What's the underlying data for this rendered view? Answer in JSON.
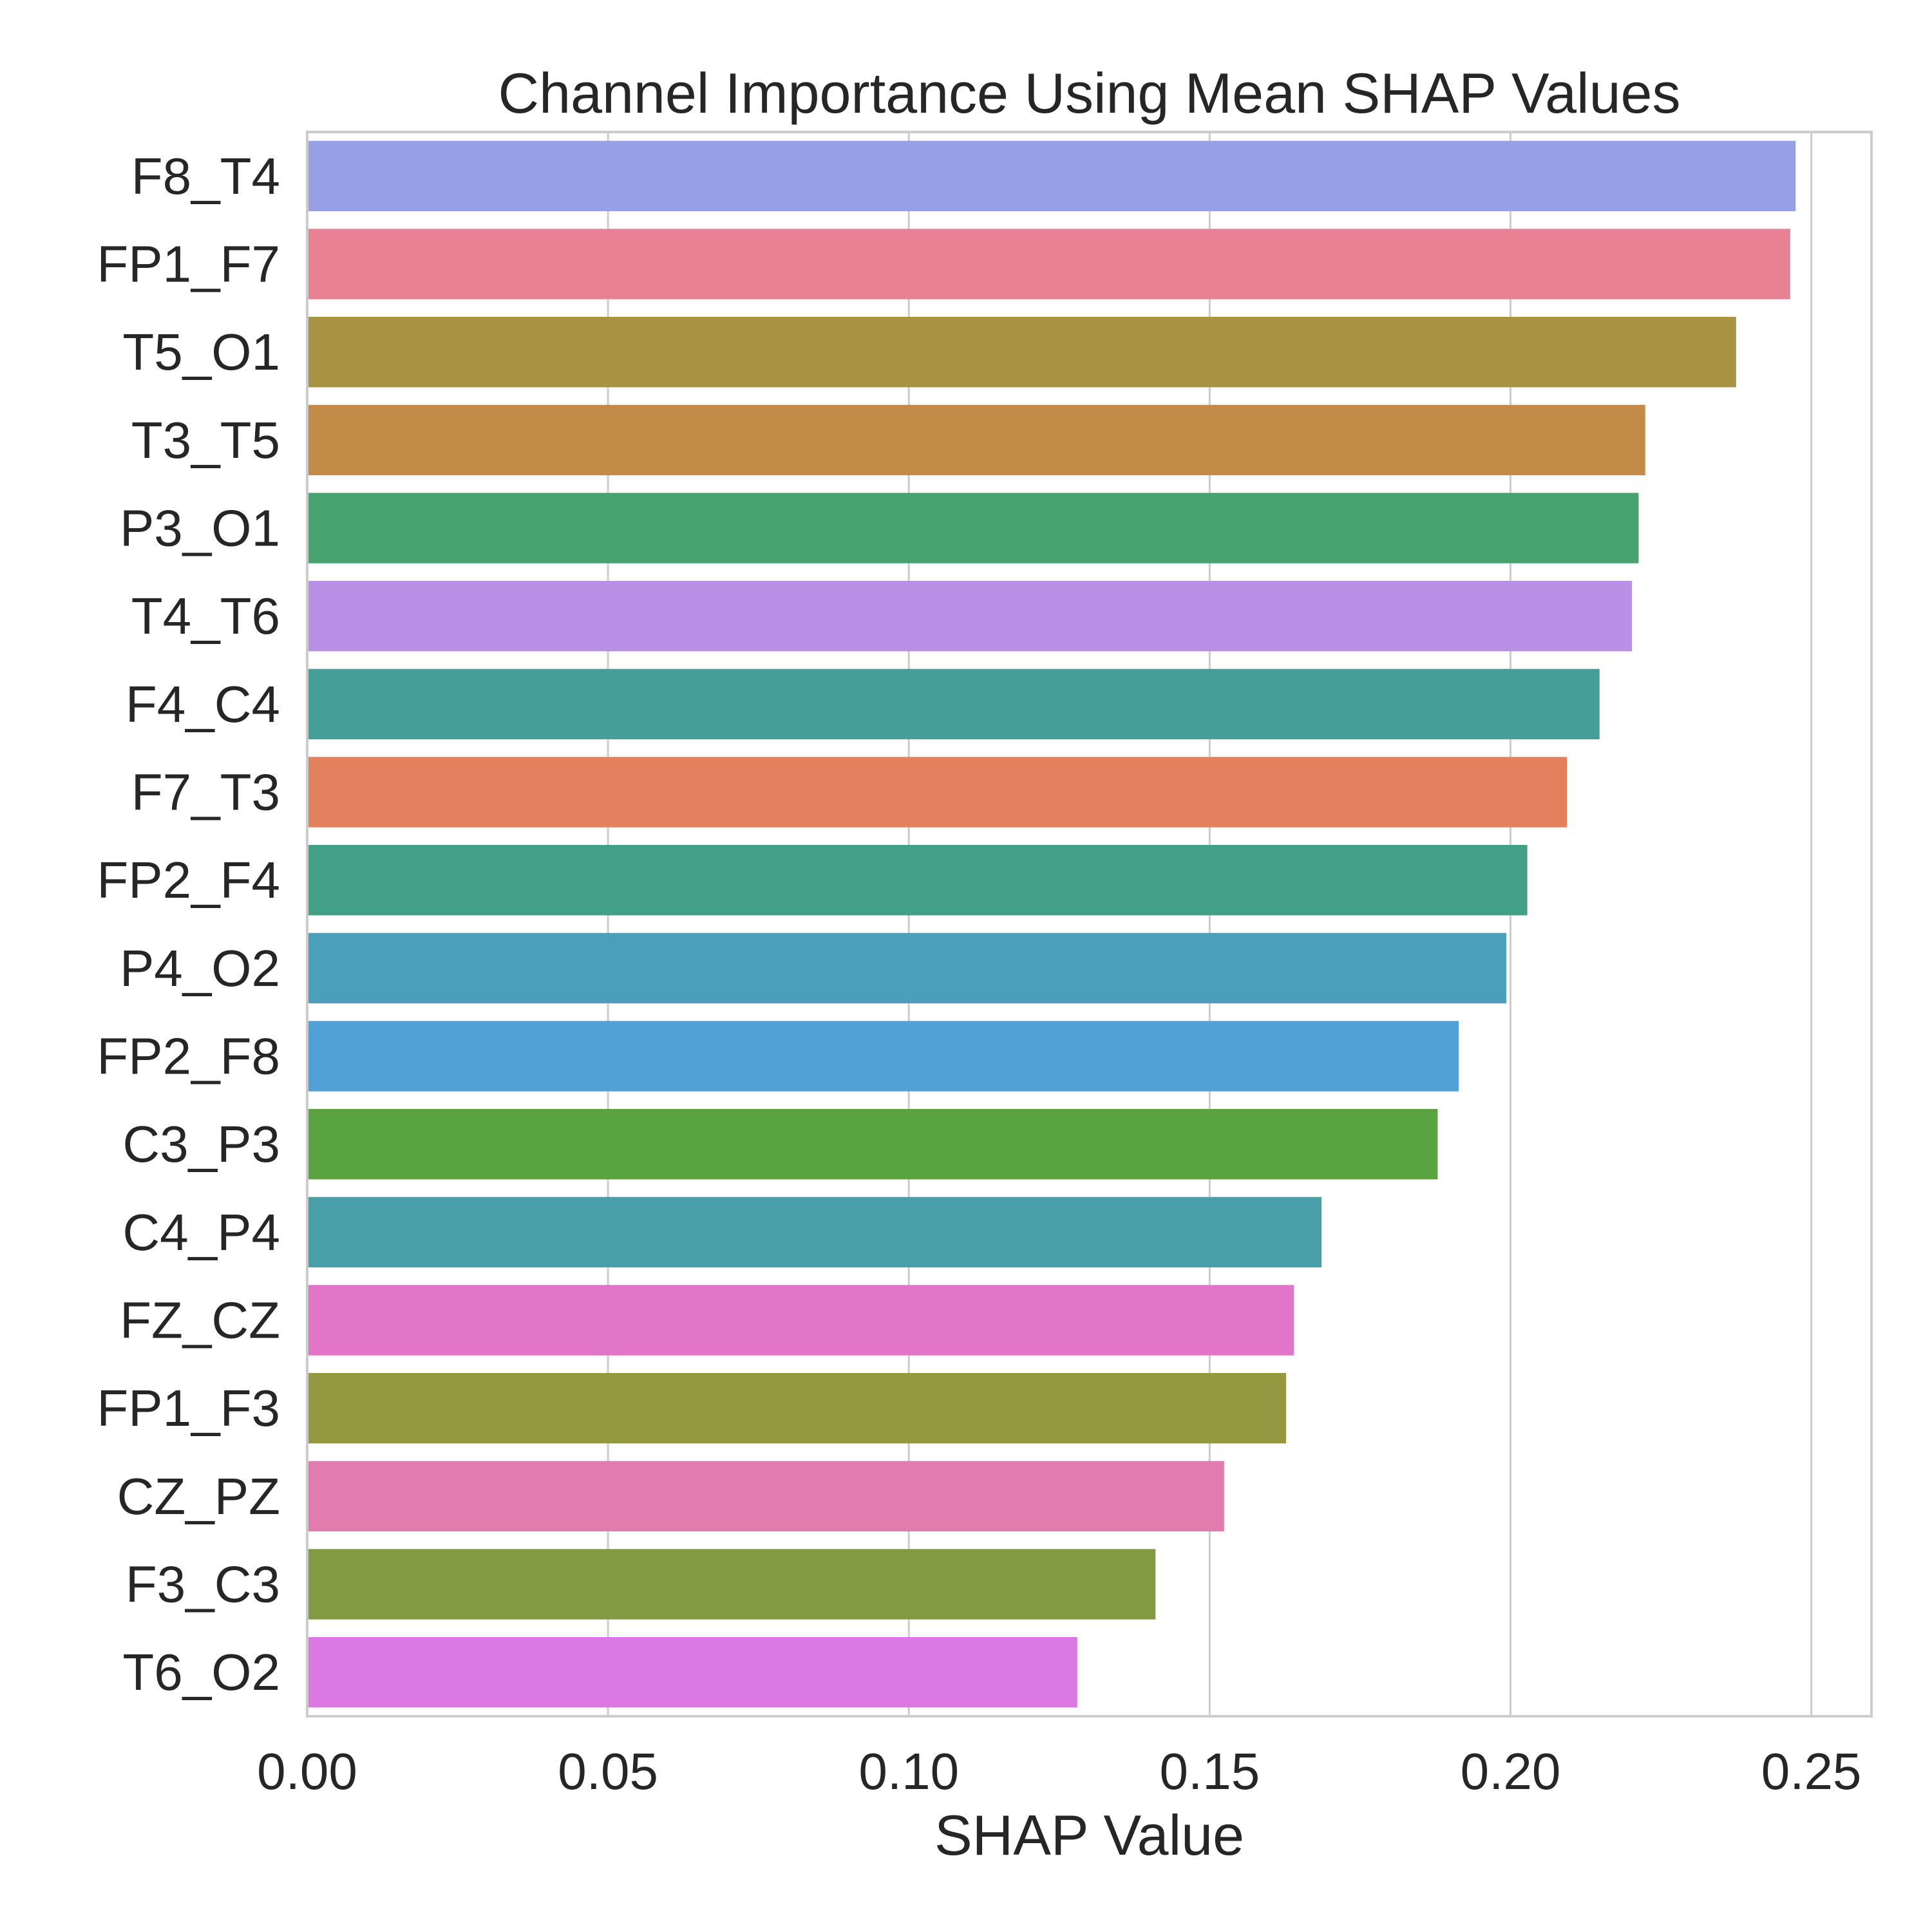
{
  "chart_data": {
    "type": "bar",
    "orientation": "horizontal",
    "title": "Channel Importance Using Mean SHAP Values",
    "xlabel": "SHAP Value",
    "ylabel": "",
    "xlim": [
      0,
      0.26
    ],
    "xticks": [
      0.0,
      0.05,
      0.1,
      0.15,
      0.2,
      0.25
    ],
    "xtick_labels": [
      "0.00",
      "0.05",
      "0.10",
      "0.15",
      "0.20",
      "0.25"
    ],
    "grid": true,
    "categories": [
      "F8_T4",
      "FP1_F7",
      "T5_O1",
      "T3_T5",
      "P3_O1",
      "T4_T6",
      "F4_C4",
      "F7_T3",
      "FP2_F4",
      "P4_O2",
      "FP2_F8",
      "C3_P3",
      "C4_P4",
      "FZ_CZ",
      "FP1_F3",
      "CZ_PZ",
      "F3_C3",
      "T6_O2"
    ],
    "values": [
      0.2474,
      0.2465,
      0.2375,
      0.2224,
      0.2213,
      0.2202,
      0.2148,
      0.2094,
      0.2028,
      0.1993,
      0.1914,
      0.1879,
      0.1686,
      0.164,
      0.1627,
      0.1524,
      0.141,
      0.128
    ],
    "colors": [
      "#97a0e6",
      "#e78193",
      "#a89243",
      "#c38a48",
      "#46a36f",
      "#b990e6",
      "#479f9a",
      "#e3805d",
      "#449f87",
      "#4a9fba",
      "#52a0d8",
      "#5aa341",
      "#489faa",
      "#e375c8",
      "#969741",
      "#e37cae",
      "#829b43",
      "#db78e3"
    ]
  },
  "style": {
    "grid_color": "#cccccc",
    "spine_color": "#cccccc",
    "text_color": "#262626",
    "background": "#ffffff"
  }
}
